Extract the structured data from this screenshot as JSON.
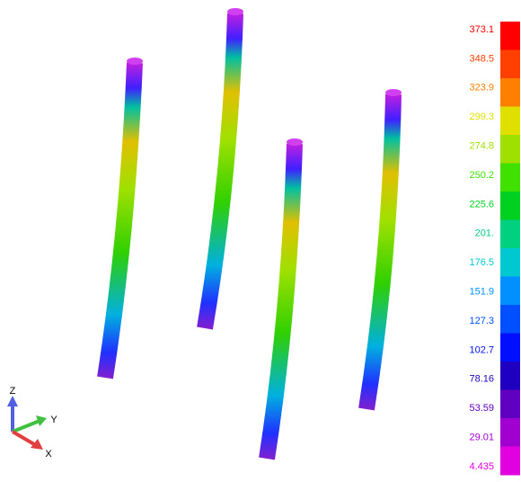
{
  "legend": {
    "labels": [
      "373.1",
      "348.5",
      "323.9",
      "299.3",
      "274.8",
      "250.2",
      "225.6",
      "201.",
      "176.5",
      "151.9",
      "127.3",
      "102.7",
      "78.16",
      "53.59",
      "29.01",
      "4.435"
    ],
    "colors": [
      "#ff0000",
      "#ff4000",
      "#ff8000",
      "#e0e000",
      "#a0e000",
      "#40e000",
      "#00d020",
      "#00d080",
      "#00c8d0",
      "#0090ff",
      "#0050ff",
      "#0010ff",
      "#2000c0",
      "#6000c0",
      "#a000d0",
      "#e000e0"
    ]
  },
  "triad": {
    "z": "Z",
    "y": "Y",
    "x": "X"
  }
}
